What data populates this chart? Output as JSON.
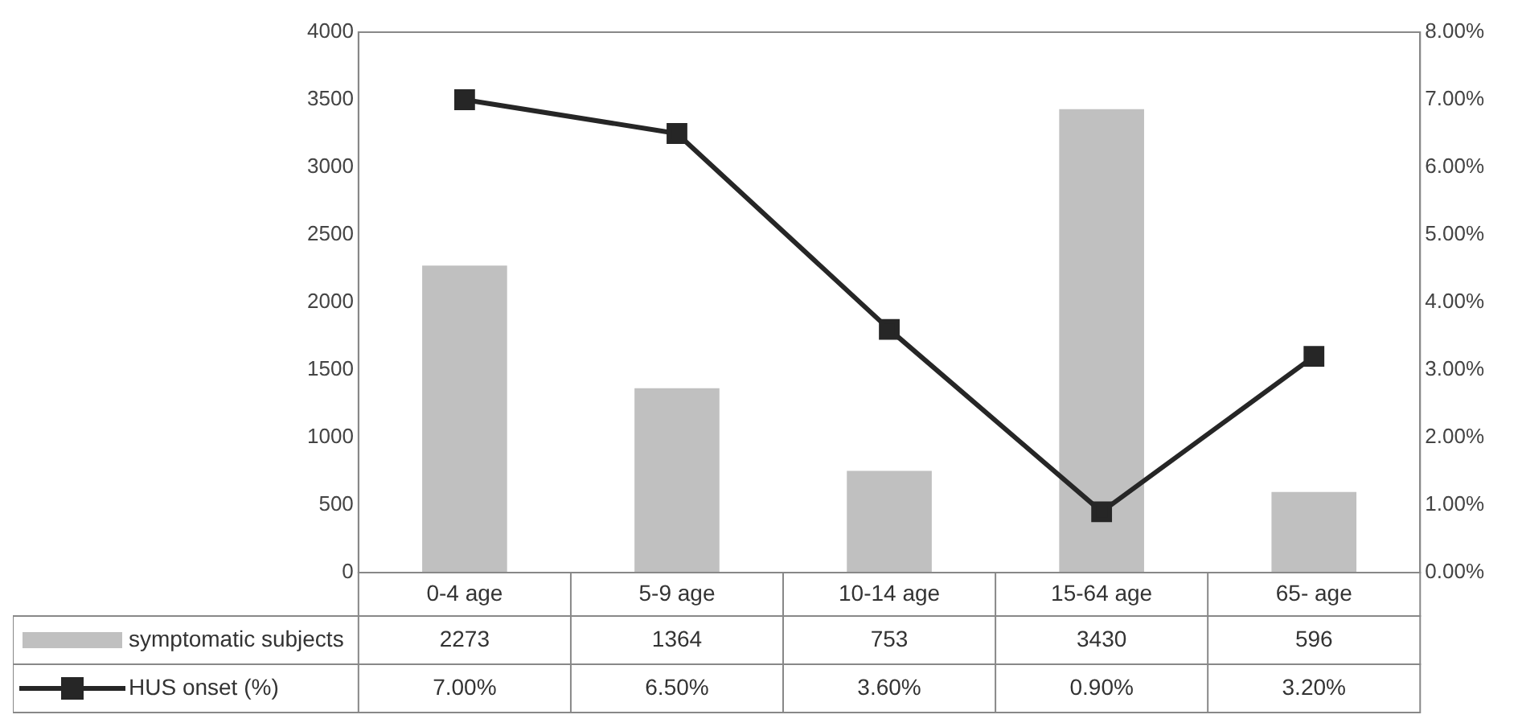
{
  "chart_data": {
    "type": "bar",
    "categories": [
      "0-4 age",
      "5-9 age",
      "10-14 age",
      "15-64 age",
      "65- age"
    ],
    "series": [
      {
        "name": "symptomatic subjects",
        "color": "#c0c0c0",
        "values": [
          2273,
          1364,
          753,
          3430,
          596
        ],
        "value_labels": [
          "2273",
          "1364",
          "753",
          "3430",
          "596"
        ]
      },
      {
        "name": "HUS onset (%)",
        "type": "line",
        "axis": "y2",
        "color": "#262626",
        "marker": "square",
        "values": [
          7.0,
          6.5,
          3.6,
          0.9,
          3.2
        ],
        "value_labels": [
          "7.00%",
          "6.50%",
          "3.60%",
          "0.90%",
          "3.20%"
        ]
      }
    ],
    "ylim": [
      0,
      4000
    ],
    "yticks": [
      0,
      500,
      1000,
      1500,
      2000,
      2500,
      3000,
      3500,
      4000
    ],
    "y2lim": [
      0,
      8
    ],
    "y2ticks": [
      {
        "value": 0,
        "label": "0.00%"
      },
      {
        "value": 1,
        "label": "1.00%"
      },
      {
        "value": 2,
        "label": "2.00%"
      },
      {
        "value": 3,
        "label": "3.00%"
      },
      {
        "value": 4,
        "label": "4.00%"
      },
      {
        "value": 5,
        "label": "5.00%"
      },
      {
        "value": 6,
        "label": "6.00%"
      },
      {
        "value": 7,
        "label": "7.00%"
      },
      {
        "value": 8,
        "label": "8.00%"
      }
    ],
    "grid": false,
    "legend": "bottom left"
  }
}
